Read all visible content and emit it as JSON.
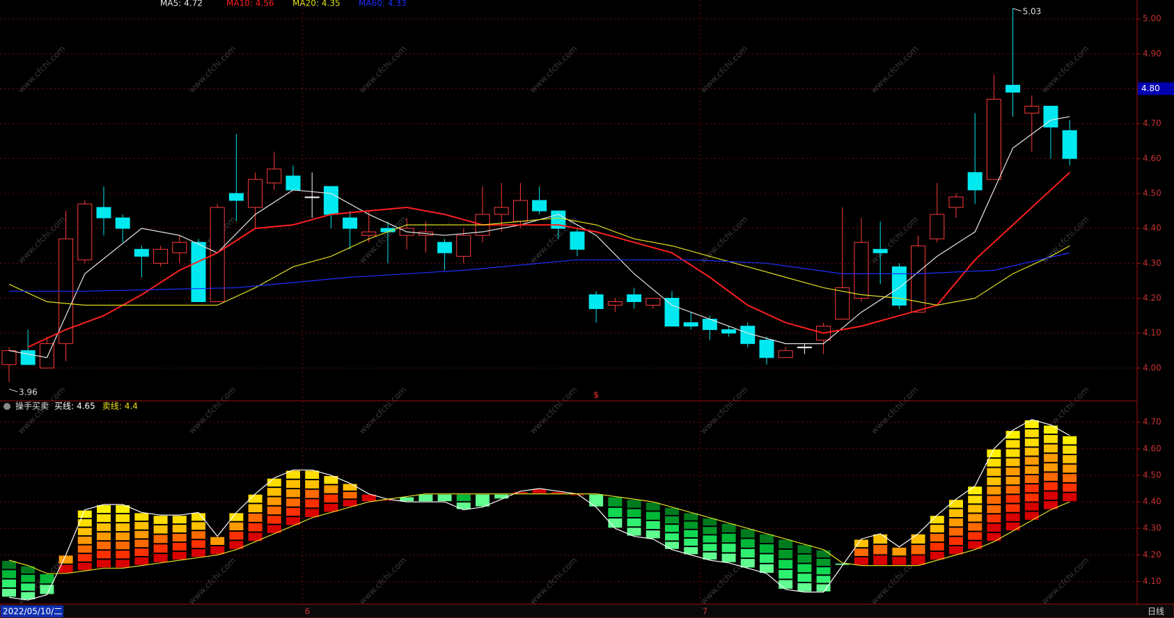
{
  "watermark": "www.cfchi.com",
  "chart_data": [
    {
      "type": "candlestick",
      "open": [
        4.01,
        4.05,
        4.0,
        4.07,
        4.31,
        4.46,
        4.43,
        4.34,
        4.3,
        4.33,
        4.36,
        4.19,
        4.5,
        4.46,
        4.53,
        4.55,
        4.49,
        4.52,
        4.43,
        4.38,
        4.4,
        4.38,
        4.38,
        4.36,
        4.32,
        4.38,
        4.44,
        4.42,
        4.48,
        4.45,
        4.39,
        4.21,
        4.18,
        4.21,
        4.18,
        4.2,
        4.13,
        4.14,
        4.11,
        4.12,
        4.08,
        4.03,
        4.06,
        4.08,
        4.14,
        4.2,
        4.34,
        4.29,
        4.16,
        4.37,
        4.46,
        4.56,
        4.54,
        4.81,
        4.73,
        4.75,
        4.68
      ],
      "high": [
        4.06,
        4.11,
        4.09,
        4.45,
        4.48,
        4.52,
        4.44,
        4.35,
        4.35,
        4.38,
        4.37,
        4.47,
        4.67,
        4.56,
        4.62,
        4.58,
        4.56,
        4.52,
        4.45,
        4.45,
        4.42,
        4.43,
        4.42,
        4.37,
        4.4,
        4.52,
        4.53,
        4.53,
        4.52,
        4.45,
        4.4,
        4.22,
        4.2,
        4.23,
        4.2,
        4.22,
        4.16,
        4.15,
        4.12,
        4.13,
        4.09,
        4.06,
        4.07,
        4.13,
        4.46,
        4.43,
        4.42,
        4.3,
        4.38,
        4.53,
        4.5,
        4.73,
        4.84,
        5.03,
        4.78,
        4.75,
        4.71
      ],
      "low": [
        3.96,
        4.01,
        4.0,
        4.02,
        4.3,
        4.38,
        4.36,
        4.26,
        4.29,
        4.3,
        4.19,
        4.19,
        4.42,
        4.4,
        4.51,
        4.51,
        4.43,
        4.4,
        4.34,
        4.36,
        4.3,
        4.34,
        4.33,
        4.28,
        4.3,
        4.36,
        4.39,
        4.4,
        4.44,
        4.37,
        4.32,
        4.13,
        4.16,
        4.17,
        4.17,
        4.12,
        4.11,
        4.08,
        4.09,
        4.06,
        4.01,
        4.03,
        4.04,
        4.04,
        4.14,
        4.19,
        4.24,
        4.17,
        4.16,
        4.36,
        4.43,
        4.47,
        4.54,
        4.72,
        4.62,
        4.6,
        4.58
      ],
      "close": [
        4.05,
        4.01,
        4.07,
        4.37,
        4.47,
        4.43,
        4.4,
        4.32,
        4.34,
        4.36,
        4.19,
        4.46,
        4.48,
        4.54,
        4.57,
        4.51,
        4.49,
        4.44,
        4.4,
        4.39,
        4.39,
        4.4,
        4.39,
        4.33,
        4.38,
        4.44,
        4.46,
        4.48,
        4.45,
        4.4,
        4.34,
        4.17,
        4.19,
        4.19,
        4.2,
        4.12,
        4.12,
        4.11,
        4.1,
        4.07,
        4.03,
        4.05,
        4.06,
        4.12,
        4.23,
        4.36,
        4.33,
        4.18,
        4.35,
        4.44,
        4.49,
        4.51,
        4.77,
        4.79,
        4.75,
        4.69,
        4.6
      ],
      "up_color": "#ff3c3c",
      "down_color": "#00e8f0",
      "flat_color": "#ffffff",
      "lines": [
        {
          "name": "MA5:",
          "color": "#e8e8e8",
          "x": [
            0,
            2,
            4,
            7,
            9,
            11,
            13,
            15,
            17,
            19,
            21,
            23,
            25,
            27,
            29,
            31,
            33,
            35,
            37,
            39,
            41,
            43,
            45,
            47,
            49,
            51,
            53,
            55,
            56
          ],
          "values": [
            4.05,
            4.03,
            4.27,
            4.4,
            4.38,
            4.33,
            4.44,
            4.51,
            4.5,
            4.44,
            4.39,
            4.38,
            4.39,
            4.41,
            4.44,
            4.38,
            4.27,
            4.18,
            4.14,
            4.1,
            4.07,
            4.07,
            4.16,
            4.23,
            4.32,
            4.39,
            4.63,
            4.71,
            4.72
          ]
        },
        {
          "name": "MA10:",
          "color": "#ff2020",
          "x": [
            1,
            3,
            5,
            7,
            9,
            11,
            13,
            15,
            17,
            19,
            21,
            23,
            25,
            27,
            29,
            31,
            33,
            35,
            37,
            39,
            41,
            43,
            45,
            47,
            49,
            51,
            53,
            55,
            56
          ],
          "values": [
            4.06,
            4.11,
            4.15,
            4.21,
            4.28,
            4.33,
            4.4,
            4.41,
            4.44,
            4.45,
            4.46,
            4.44,
            4.41,
            4.41,
            4.41,
            4.39,
            4.36,
            4.33,
            4.26,
            4.18,
            4.13,
            4.1,
            4.12,
            4.15,
            4.18,
            4.31,
            4.41,
            4.51,
            4.56
          ]
        },
        {
          "name": "MA20:",
          "color": "#e0e020",
          "x": [
            0,
            2,
            4,
            8,
            11,
            13,
            15,
            17,
            19,
            21,
            23,
            25,
            27,
            29,
            31,
            33,
            35,
            37,
            39,
            41,
            43,
            45,
            47,
            49,
            51,
            53,
            55,
            56
          ],
          "values": [
            4.24,
            4.19,
            4.18,
            4.18,
            4.18,
            4.23,
            4.29,
            4.32,
            4.37,
            4.41,
            4.41,
            4.41,
            4.42,
            4.43,
            4.41,
            4.37,
            4.35,
            4.32,
            4.29,
            4.26,
            4.23,
            4.21,
            4.2,
            4.18,
            4.2,
            4.27,
            4.32,
            4.35
          ]
        },
        {
          "name": "MA60:",
          "color": "#2030ff",
          "x": [
            0,
            4,
            12,
            18,
            24,
            30,
            36,
            40,
            44,
            48,
            52,
            56
          ],
          "values": [
            4.22,
            4.22,
            4.23,
            4.26,
            4.28,
            4.31,
            4.31,
            4.3,
            4.27,
            4.27,
            4.28,
            4.33
          ]
        }
      ],
      "ylim": [
        3.91,
        5.05
      ],
      "yticks": [
        {
          "value": 4.0,
          "label": "4.00"
        },
        {
          "value": 4.1,
          "label": "4.10"
        },
        {
          "value": 4.2,
          "label": "4.20"
        },
        {
          "value": 4.3,
          "label": "4.30"
        },
        {
          "value": 4.4,
          "label": "4.40"
        },
        {
          "value": 4.5,
          "label": "4.50"
        },
        {
          "value": 4.6,
          "label": "4.60"
        },
        {
          "value": 4.7,
          "label": "4.70"
        },
        {
          "value": 4.8,
          "label": "4.80"
        },
        {
          "value": 4.9,
          "label": "4.90"
        },
        {
          "value": 5.0,
          "label": "5.00"
        }
      ],
      "grid": true,
      "price_line": {
        "value": 4.8,
        "label": "4.80"
      },
      "annotations": [
        {
          "x": 53,
          "value": 5.03
        },
        {
          "x": 0,
          "value": 3.96
        }
      ],
      "markers": [
        {
          "x": 31,
          "label": "$"
        }
      ],
      "x_labels": [
        {
          "x": 0,
          "label": "2022/05/10/二"
        },
        {
          "x": 16,
          "label": "6"
        },
        {
          "x": 37,
          "label": "7"
        }
      ],
      "period": "日线"
    },
    {
      "type": "block-band",
      "title": "操手买卖",
      "series": [
        {
          "name": "买线:",
          "color": "#ffffff",
          "values": [
            4.04,
            4.03,
            4.05,
            4.2,
            4.37,
            4.39,
            4.39,
            4.36,
            4.35,
            4.35,
            4.36,
            4.27,
            4.36,
            4.43,
            4.49,
            4.52,
            4.52,
            4.5,
            4.47,
            4.43,
            4.41,
            4.4,
            4.4,
            4.4,
            4.37,
            4.38,
            4.41,
            4.44,
            4.45,
            4.44,
            4.43,
            4.38,
            4.3,
            4.27,
            4.26,
            4.22,
            4.2,
            4.18,
            4.17,
            4.15,
            4.13,
            4.07,
            4.06,
            4.06,
            4.16,
            4.26,
            4.28,
            4.23,
            4.28,
            4.35,
            4.41,
            4.46,
            4.6,
            4.67,
            4.71,
            4.69,
            4.65
          ]
        },
        {
          "name": "卖线:",
          "color": "#e8e020",
          "values": [
            4.18,
            4.16,
            4.13,
            4.13,
            4.14,
            4.15,
            4.15,
            4.16,
            4.17,
            4.18,
            4.19,
            4.2,
            4.22,
            4.25,
            4.28,
            4.31,
            4.34,
            4.36,
            4.38,
            4.4,
            4.41,
            4.42,
            4.43,
            4.43,
            4.43,
            4.43,
            4.43,
            4.43,
            4.43,
            4.43,
            4.43,
            4.43,
            4.42,
            4.41,
            4.4,
            4.38,
            4.36,
            4.34,
            4.32,
            4.3,
            4.28,
            4.26,
            4.24,
            4.22,
            4.17,
            4.16,
            4.16,
            4.16,
            4.16,
            4.18,
            4.2,
            4.22,
            4.25,
            4.29,
            4.33,
            4.37,
            4.4
          ]
        }
      ],
      "ylim": [
        4.02,
        4.77
      ],
      "yticks": [
        {
          "value": 4.1,
          "label": "4.10"
        },
        {
          "value": 4.2,
          "label": "4.20"
        },
        {
          "value": 4.3,
          "label": "4.30"
        },
        {
          "value": 4.4,
          "label": "4.40"
        },
        {
          "value": 4.5,
          "label": "4.50"
        },
        {
          "value": 4.6,
          "label": "4.60"
        },
        {
          "value": 4.7,
          "label": "4.70"
        }
      ],
      "grid": true
    }
  ]
}
